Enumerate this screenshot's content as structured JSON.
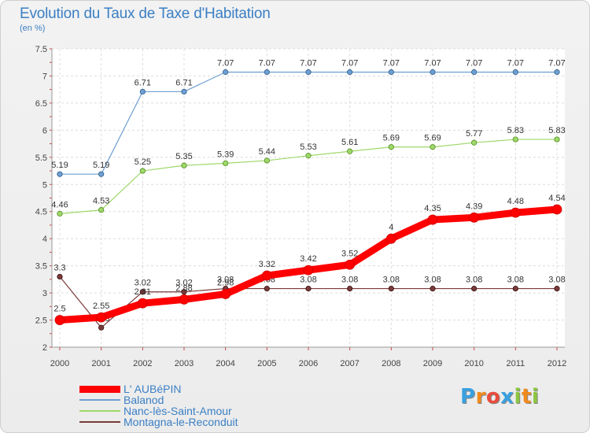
{
  "title": "Evolution du Taux de Taxe d'Habitation",
  "unit": "(en %)",
  "logo": {
    "text": "Proxiti",
    "letters": [
      "P",
      "r",
      "o",
      "x",
      "i",
      "t",
      "i"
    ],
    "colors": [
      "#3aa0e0",
      "#f08a1c",
      "#e84c3d",
      "#3aa0e0",
      "#8cc63e",
      "#f08a1c",
      "#8cc63e"
    ]
  },
  "chart_data": {
    "type": "line",
    "title": "Evolution du Taux de Taxe d'Habitation",
    "xlabel": "",
    "ylabel": "(en %)",
    "ylim": [
      2,
      7.5
    ],
    "yticks": [
      2,
      2.5,
      3,
      3.5,
      4,
      4.5,
      5,
      5.5,
      6,
      6.5,
      7,
      7.5
    ],
    "x": [
      2000,
      2001,
      2002,
      2003,
      2004,
      2005,
      2006,
      2007,
      2008,
      2009,
      2010,
      2011,
      2012
    ],
    "grid": true,
    "legend": "bottom-left",
    "series": [
      {
        "name": "Balanod",
        "color": "#6f9fd0",
        "values": [
          5.19,
          5.19,
          6.71,
          6.71,
          7.07,
          7.07,
          7.07,
          7.07,
          7.07,
          7.07,
          7.07,
          7.07,
          7.07
        ],
        "labels": [
          "5.19",
          "5.19",
          "6.71",
          "6.71",
          "7.07",
          "7.07",
          "7.07",
          "7.07",
          "7.07",
          "7.07",
          "7.07",
          "7.07",
          "7.07"
        ]
      },
      {
        "name": "Nanc-lès-Saint-Amour",
        "color": "#9fd86a",
        "values": [
          4.46,
          4.53,
          5.25,
          5.35,
          5.39,
          5.44,
          5.53,
          5.61,
          5.69,
          5.69,
          5.77,
          5.83,
          5.83
        ],
        "labels": [
          "4.46",
          "4.53",
          "5.25",
          "5.35",
          "5.39",
          "5.44",
          "5.53",
          "5.61",
          "5.69",
          "5.69",
          "5.77",
          "5.83",
          "5.83"
        ]
      },
      {
        "name": "Montagna-le-Reconduit",
        "color": "#7a3a3a",
        "values": [
          3.3,
          2.36,
          3.02,
          3.02,
          3.08,
          3.08,
          3.08,
          3.08,
          3.08,
          3.08,
          3.08,
          3.08,
          3.08
        ],
        "labels": [
          "3.3",
          "2.36",
          "3.02",
          "3.02",
          "3.08",
          "3.08",
          "3.08",
          "3.08",
          "3.08",
          "3.08",
          "3.08",
          "3.08",
          "3.08"
        ]
      },
      {
        "name": "L' AUBéPIN",
        "color": "#ff0000",
        "values": [
          2.5,
          2.55,
          2.81,
          2.88,
          2.98,
          3.32,
          3.42,
          3.52,
          4.0,
          4.35,
          4.39,
          4.48,
          4.54
        ],
        "labels": [
          "2.5",
          "2.55",
          "2.81",
          "2.88",
          "2.98",
          "3.32",
          "3.42",
          "3.52",
          "4",
          "4.35",
          "4.39",
          "4.48",
          "4.54"
        ]
      }
    ],
    "legend_order": [
      "L' AUBéPIN",
      "Balanod",
      "Nanc-lès-Saint-Amour",
      "Montagna-le-Reconduit"
    ]
  }
}
